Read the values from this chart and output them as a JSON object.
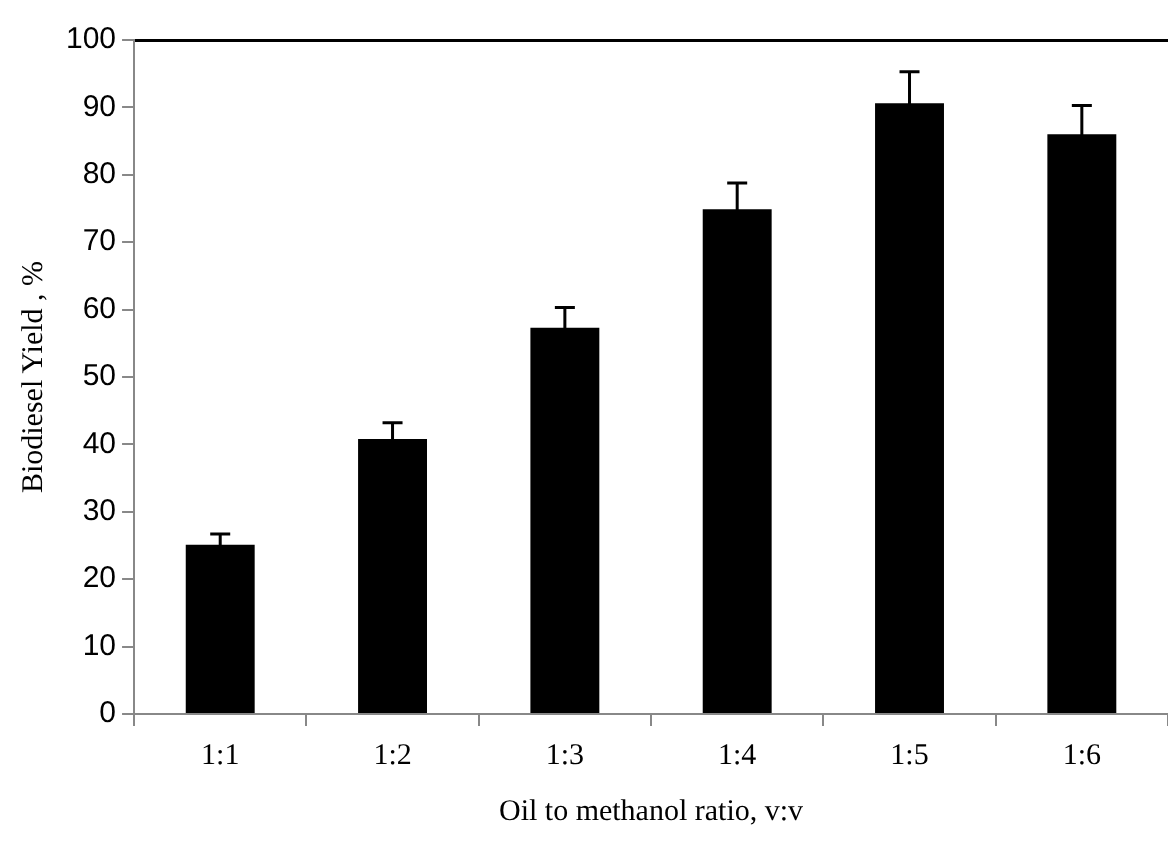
{
  "chart_data": {
    "type": "bar",
    "xlabel": "Oil to methanol ratio, v:v",
    "ylabel": "Biodiesel Yield , %",
    "categories": [
      "1:1",
      "1:2",
      "1:3",
      "1:4",
      "1:5",
      "1:6"
    ],
    "values": [
      25.1,
      40.8,
      57.3,
      74.9,
      90.6,
      86.0
    ],
    "errors": [
      1.6,
      2.4,
      3.0,
      3.9,
      4.7,
      4.3
    ],
    "color": "#000000",
    "ylim": [
      0,
      100
    ],
    "yticks": [
      0,
      10,
      20,
      30,
      40,
      50,
      60,
      70,
      80,
      90,
      100
    ],
    "grid": false,
    "legend": false
  }
}
